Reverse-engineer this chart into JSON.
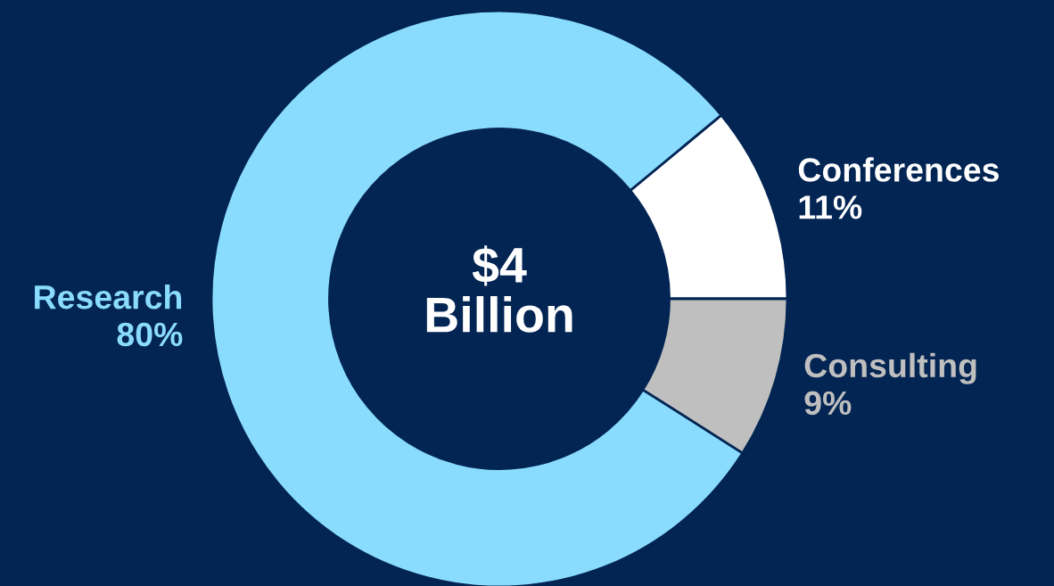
{
  "chart_data": {
    "type": "donut",
    "categories": [
      "Conferences",
      "Consulting",
      "Research"
    ],
    "values": [
      11,
      9,
      80
    ],
    "value_labels": [
      "11%",
      "9%",
      "80%"
    ],
    "colors": [
      "#ffffff",
      "#bfbfbf",
      "#8adcff"
    ],
    "annotations": [
      "$4\nBillion"
    ]
  }
}
